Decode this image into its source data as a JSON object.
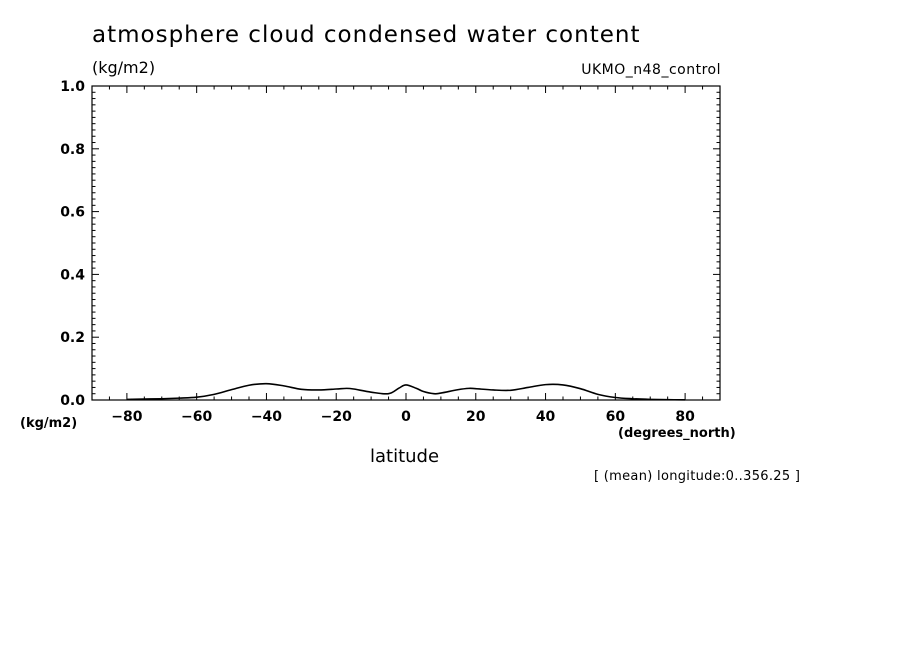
{
  "chart_data": {
    "type": "line",
    "title": "atmosphere cloud condensed water content",
    "ylabel": "(kg/m2)",
    "y_unit_bottom": "(kg/m2)",
    "xlabel": "latitude",
    "x_unit": "(degrees_north)",
    "model": "UKMO_n48_control",
    "note": "[ (mean) longitude:0..356.25 ]",
    "xlim": [
      -90,
      90
    ],
    "ylim": [
      0,
      1.0
    ],
    "x_ticks": [
      -80,
      -60,
      -40,
      -20,
      0,
      20,
      40,
      60,
      80
    ],
    "y_ticks": [
      0.0,
      0.2,
      0.4,
      0.6,
      0.8,
      1.0
    ],
    "y_tick_labels": [
      "0.0",
      "0.2",
      "0.4",
      "0.6",
      "0.8",
      "1.0"
    ],
    "x_tick_labels": [
      "−80",
      "−60",
      "−40",
      "−20",
      "0",
      "20",
      "40",
      "60",
      "80"
    ],
    "grid": false,
    "series": [
      {
        "x": [
          -80,
          -75,
          -70,
          -65,
          -60,
          -55,
          -50,
          -45,
          -40,
          -35,
          -30,
          -25,
          -20,
          -17,
          -15,
          -10,
          -5,
          -2,
          0,
          3,
          5,
          8,
          10,
          15,
          18,
          20,
          25,
          30,
          35,
          40,
          45,
          50,
          55,
          60,
          65,
          70,
          75,
          80
        ],
        "y": [
          0.002,
          0.003,
          0.004,
          0.006,
          0.009,
          0.018,
          0.033,
          0.047,
          0.052,
          0.045,
          0.034,
          0.032,
          0.035,
          0.037,
          0.035,
          0.025,
          0.02,
          0.038,
          0.048,
          0.037,
          0.027,
          0.02,
          0.022,
          0.033,
          0.037,
          0.036,
          0.032,
          0.031,
          0.04,
          0.049,
          0.048,
          0.036,
          0.018,
          0.008,
          0.004,
          0.002,
          0.001,
          0.0005
        ]
      }
    ]
  }
}
